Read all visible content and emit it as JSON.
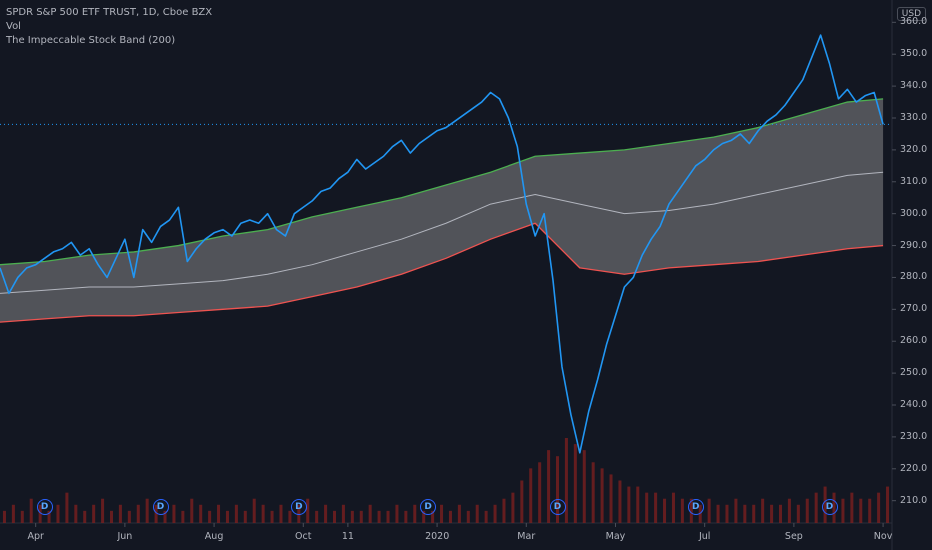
{
  "legend": {
    "symbol": "SPDR S&P 500 ETF TRUST, 1D, Cboe BZX",
    "volume": "Vol",
    "indicator": "The Impeccable Stock Band (200)"
  },
  "currency": "USD",
  "colors": {
    "background": "#131722",
    "price": "#2196f3",
    "upper": "#4caf50",
    "lower": "#ef5350",
    "mid": "#b2b5be",
    "fill": "#5d5e63",
    "volume": "#7a1f1f",
    "dividend": "#2962ff"
  },
  "dividend_label": "D",
  "chart_data": {
    "type": "line",
    "title": "",
    "xlabel": "",
    "ylabel": "",
    "ylim": [
      203,
      367
    ],
    "y_ticks": [
      210,
      220,
      230,
      240,
      250,
      260,
      270,
      280,
      290,
      300,
      310,
      320,
      330,
      340,
      350,
      360
    ],
    "x_ticks": [
      "Apr",
      "Jun",
      "Aug",
      "Oct",
      "11",
      "2020",
      "Mar",
      "May",
      "Jul",
      "Sep",
      "Nov"
    ],
    "x_tick_pos": [
      0.8,
      2.8,
      4.8,
      6.8,
      7.8,
      9.8,
      11.8,
      13.8,
      15.8,
      17.8,
      19.8
    ],
    "x_range": [
      0,
      20
    ],
    "current_price": 328,
    "series": [
      {
        "role": "price",
        "x": [
          0,
          0.2,
          0.4,
          0.6,
          0.8,
          1.0,
          1.2,
          1.4,
          1.6,
          1.8,
          2.0,
          2.2,
          2.4,
          2.6,
          2.8,
          3.0,
          3.2,
          3.4,
          3.6,
          3.8,
          4.0,
          4.2,
          4.4,
          4.6,
          4.8,
          5.0,
          5.2,
          5.4,
          5.6,
          5.8,
          6.0,
          6.2,
          6.4,
          6.6,
          6.8,
          7.0,
          7.2,
          7.4,
          7.6,
          7.8,
          8.0,
          8.2,
          8.4,
          8.6,
          8.8,
          9.0,
          9.2,
          9.4,
          9.6,
          9.8,
          10.0,
          10.2,
          10.4,
          10.6,
          10.8,
          11.0,
          11.2,
          11.4,
          11.6,
          11.8,
          12.0,
          12.2,
          12.4,
          12.6,
          12.8,
          13.0,
          13.2,
          13.4,
          13.6,
          13.8,
          14.0,
          14.2,
          14.4,
          14.6,
          14.8,
          15.0,
          15.2,
          15.4,
          15.6,
          15.8,
          16.0,
          16.2,
          16.4,
          16.6,
          16.8,
          17.0,
          17.2,
          17.4,
          17.6,
          17.8,
          18.0,
          18.2,
          18.4,
          18.6,
          18.8,
          19.0,
          19.2,
          19.4,
          19.6,
          19.8
        ],
        "values": [
          283,
          275,
          280,
          283,
          284,
          286,
          288,
          289,
          291,
          287,
          289,
          284,
          280,
          286,
          292,
          280,
          295,
          291,
          296,
          298,
          302,
          285,
          289,
          292,
          294,
          295,
          293,
          297,
          298,
          297,
          300,
          295,
          293,
          300,
          302,
          304,
          307,
          308,
          311,
          313,
          317,
          314,
          316,
          318,
          321,
          323,
          319,
          322,
          324,
          326,
          327,
          329,
          331,
          333,
          335,
          338,
          336,
          330,
          321,
          303,
          293,
          300,
          279,
          252,
          237,
          225,
          238,
          248,
          259,
          268,
          277,
          280,
          287,
          292,
          296,
          303,
          307,
          311,
          315,
          317,
          320,
          322,
          323,
          325,
          322,
          326,
          329,
          331,
          334,
          338,
          342,
          349,
          356,
          347,
          336,
          339,
          335,
          337,
          338,
          328
        ]
      },
      {
        "role": "upper",
        "x": [
          0,
          1,
          2,
          3,
          4,
          5,
          6,
          7,
          8,
          9,
          10,
          11,
          12,
          13,
          14,
          15,
          16,
          17,
          18,
          19,
          19.8
        ],
        "values": [
          284,
          285,
          287,
          288,
          290,
          293,
          295,
          299,
          302,
          305,
          309,
          313,
          318,
          319,
          320,
          322,
          324,
          327,
          331,
          335,
          336
        ]
      },
      {
        "role": "mid",
        "x": [
          0,
          1,
          2,
          3,
          4,
          5,
          6,
          7,
          8,
          9,
          10,
          11,
          12,
          13,
          14,
          15,
          16,
          17,
          18,
          19,
          19.8
        ],
        "values": [
          275,
          276,
          277,
          277,
          278,
          279,
          281,
          284,
          288,
          292,
          297,
          303,
          306,
          303,
          300,
          301,
          303,
          306,
          309,
          312,
          313
        ]
      },
      {
        "role": "lower",
        "x": [
          0,
          1,
          2,
          3,
          4,
          5,
          6,
          7,
          8,
          9,
          10,
          11,
          12,
          13,
          14,
          15,
          16,
          17,
          18,
          19,
          19.8
        ],
        "values": [
          266,
          267,
          268,
          268,
          269,
          270,
          271,
          274,
          277,
          281,
          286,
          292,
          297,
          283,
          281,
          283,
          284,
          285,
          287,
          289,
          290
        ]
      }
    ],
    "volume": [
      2,
      3,
      2,
      4,
      3,
      2,
      3,
      5,
      3,
      2,
      3,
      4,
      2,
      3,
      2,
      3,
      4,
      3,
      2,
      3,
      2,
      4,
      3,
      2,
      3,
      2,
      3,
      2,
      4,
      3,
      2,
      3,
      2,
      3,
      4,
      2,
      3,
      2,
      3,
      2,
      2,
      3,
      2,
      2,
      3,
      2,
      3,
      2,
      2,
      3,
      2,
      3,
      2,
      3,
      2,
      3,
      4,
      5,
      7,
      9,
      10,
      12,
      11,
      14,
      13,
      12,
      10,
      9,
      8,
      7,
      6,
      6,
      5,
      5,
      4,
      5,
      4,
      4,
      3,
      4,
      3,
      3,
      4,
      3,
      3,
      4,
      3,
      3,
      4,
      3,
      4,
      5,
      6,
      5,
      4,
      5,
      4,
      4,
      5,
      6
    ],
    "volume_max": 14,
    "dividends_x": [
      1.0,
      3.6,
      6.7,
      9.6,
      12.5,
      15.6,
      18.6
    ]
  }
}
